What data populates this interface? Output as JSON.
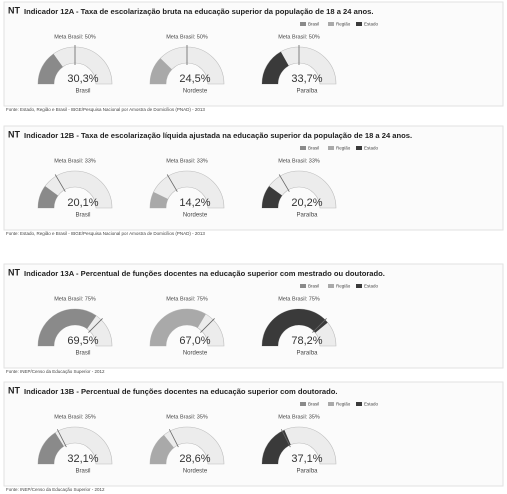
{
  "logo": "NT",
  "chart_data": [
    {
      "type": "gauge",
      "title": "Indicador 12A - Taxa de escolarização bruta na educação superior da população de 18 a 24 anos.",
      "legend": [
        "Brasil",
        "Região",
        "Estado"
      ],
      "colors": [
        "#8a8a8a",
        "#a9a9a9",
        "#3a3a3a"
      ],
      "categories": [
        "Brasil",
        "Nordeste",
        "Paraíba"
      ],
      "values": [
        30.3,
        24.5,
        33.7
      ],
      "value_labels": [
        "30,3%",
        "24,5%",
        "33,7%"
      ],
      "targets": [
        50,
        50,
        50
      ],
      "target_labels": [
        "Meta Brasil: 50%",
        "Meta Brasil: 50%",
        "Meta Brasil: 50%"
      ],
      "ylim": [
        0,
        100
      ],
      "source": "Fonte: Estado, Região e Brasil - IBGE/Pesquisa Nacional por Amostra de Domicílios (PNAD) - 2013"
    },
    {
      "type": "gauge",
      "title": "Indicador 12B - Taxa de escolarização líquida ajustada na educação superior da população de 18 a 24 anos.",
      "legend": [
        "Brasil",
        "Região",
        "Estado"
      ],
      "colors": [
        "#8a8a8a",
        "#a9a9a9",
        "#3a3a3a"
      ],
      "categories": [
        "Brasil",
        "Nordeste",
        "Paraíba"
      ],
      "values": [
        20.1,
        14.2,
        20.2
      ],
      "value_labels": [
        "20,1%",
        "14,2%",
        "20,2%"
      ],
      "targets": [
        33,
        33,
        33
      ],
      "target_labels": [
        "Meta Brasil: 33%",
        "Meta Brasil: 33%",
        "Meta Brasil: 33%"
      ],
      "ylim": [
        0,
        100
      ],
      "source": "Fonte: Estado, Região e Brasil - IBGE/Pesquisa Nacional por Amostra de Domicílios (PNAD) - 2013"
    },
    {
      "type": "gauge",
      "title": "Indicador 13A - Percentual de funções docentes na educação superior com mestrado ou doutorado.",
      "legend": [
        "Brasil",
        "Região",
        "Estado"
      ],
      "colors": [
        "#8a8a8a",
        "#a9a9a9",
        "#3a3a3a"
      ],
      "categories": [
        "Brasil",
        "Nordeste",
        "Paraíba"
      ],
      "values": [
        69.5,
        67.0,
        78.2
      ],
      "value_labels": [
        "69,5%",
        "67,0%",
        "78,2%"
      ],
      "targets": [
        75,
        75,
        75
      ],
      "target_labels": [
        "Meta Brasil: 75%",
        "Meta Brasil: 75%",
        "Meta Brasil: 75%"
      ],
      "ylim": [
        0,
        100
      ],
      "source": "Fonte: INEP/Censo da Educação Superior - 2012"
    },
    {
      "type": "gauge",
      "title": "Indicador 13B - Percentual de funções docentes na educação superior com doutorado.",
      "legend": [
        "Brasil",
        "Região",
        "Estado"
      ],
      "colors": [
        "#8a8a8a",
        "#a9a9a9",
        "#3a3a3a"
      ],
      "categories": [
        "Brasil",
        "Nordeste",
        "Paraíba"
      ],
      "values": [
        32.1,
        28.6,
        37.1
      ],
      "value_labels": [
        "32,1%",
        "28,6%",
        "37,1%"
      ],
      "targets": [
        35,
        35,
        35
      ],
      "target_labels": [
        "Meta Brasil: 35%",
        "Meta Brasil: 35%",
        "Meta Brasil: 35%"
      ],
      "ylim": [
        0,
        100
      ],
      "source": "Fonte: INEP/Censo da Educação Superior - 2012"
    }
  ]
}
